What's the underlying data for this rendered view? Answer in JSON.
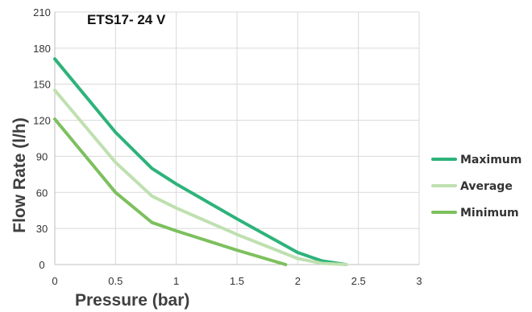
{
  "chart_data": {
    "type": "line",
    "title": "ETS17- 24 V",
    "xlabel": "Pressure (bar)",
    "ylabel": "Flow Rate (l/h)",
    "xlim": [
      0,
      3
    ],
    "ylim": [
      0,
      210
    ],
    "xticks": [
      0,
      0.5,
      1,
      1.5,
      2,
      2.5,
      3
    ],
    "xtick_labels": [
      "0",
      "0.5",
      "1",
      "1.5",
      "2",
      "2.5",
      "3"
    ],
    "yticks": [
      0,
      30,
      60,
      90,
      120,
      150,
      180,
      210
    ],
    "ytick_labels": [
      "0",
      "30",
      "60",
      "90",
      "120",
      "150",
      "180",
      "210"
    ],
    "grid": true,
    "legend_position": "right",
    "series": [
      {
        "name": "Maximum",
        "color": "#2db37a",
        "x": [
          0,
          0.5,
          0.8,
          1.0,
          1.5,
          2.0,
          2.2,
          2.4
        ],
        "y": [
          171,
          110,
          80,
          67,
          38,
          10,
          3,
          0
        ]
      },
      {
        "name": "Average",
        "color": "#bfe0b0",
        "x": [
          0,
          0.5,
          0.8,
          1.0,
          1.5,
          2.0,
          2.2,
          2.4
        ],
        "y": [
          145,
          85,
          57,
          47,
          25,
          5,
          1,
          0
        ]
      },
      {
        "name": "Minimum",
        "color": "#7dc05e",
        "x": [
          0,
          0.5,
          0.8,
          1.0,
          1.5,
          1.9
        ],
        "y": [
          121,
          60,
          35,
          28,
          12,
          0
        ]
      }
    ]
  }
}
